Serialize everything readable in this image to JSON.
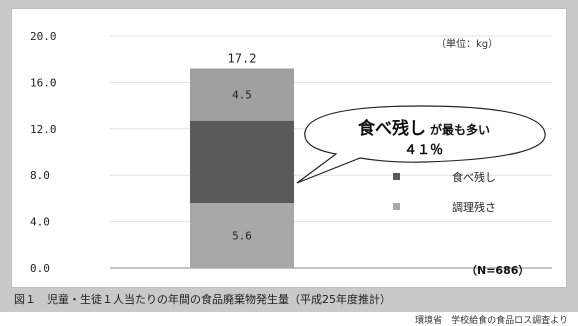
{
  "chart_data": {
    "type": "bar",
    "stacked": true,
    "categories": [
      ""
    ],
    "series": [
      {
        "name": "調理残さ",
        "values": [
          5.6
        ],
        "label": "5.6",
        "color": "#a8a8a8"
      },
      {
        "name": "食べ残し",
        "values": [
          7.1
        ],
        "label": "",
        "color": "#5a5a5a"
      },
      {
        "name": "",
        "values": [
          4.5
        ],
        "label": "4.5",
        "color": "#a0a0a0"
      }
    ],
    "total": 17.2,
    "total_label": "17.2",
    "ylim": [
      0,
      20
    ],
    "yticks": [
      "0.0",
      "4.0",
      "8.0",
      "12.0",
      "16.0",
      "20.0"
    ],
    "ytick_values": [
      0,
      4,
      8,
      12,
      16,
      20
    ],
    "grid": true,
    "unit_label": "（単位：kg）",
    "n_label": "（N=686）",
    "legend": [
      {
        "label": "食べ残し",
        "color": "#5a5a5a"
      },
      {
        "label": "調理残さ",
        "color": "#a8a8a8"
      }
    ],
    "callout": {
      "big": "食べ残し",
      "small": "が最も多い",
      "pct": "４１％"
    },
    "caption": "図１　児童・生徒１人当たりの年間の食品廃棄物発生量（平成25年度推計）",
    "source": "環境省　学校給食の食品ロス調査より"
  }
}
